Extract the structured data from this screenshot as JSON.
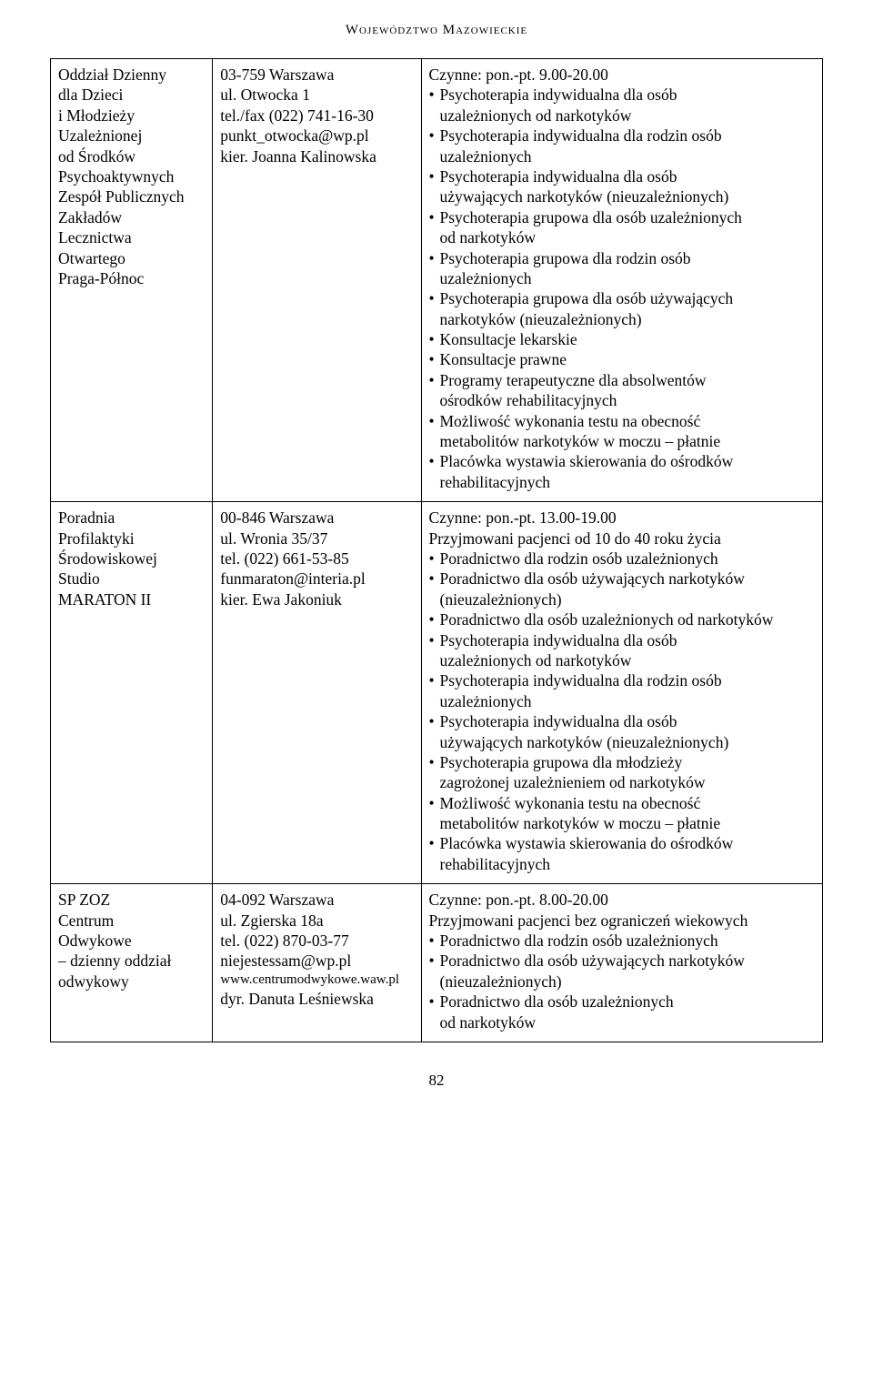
{
  "header": "Województwo Mazowieckie",
  "page_number": "82",
  "rows": [
    {
      "col1_lines": [
        "Oddział Dzienny",
        "dla Dzieci",
        "i Młodzieży",
        "Uzależnionej",
        "od Środków",
        "Psychoaktywnych",
        "Zespół Publicznych",
        "Zakładów",
        "Lecznictwa",
        "Otwartego",
        "Praga-Północ"
      ],
      "col2_lines": [
        "03-759 Warszawa",
        "ul. Otwocka 1",
        "tel./fax (022) 741-16-30",
        "punkt_otwocka@wp.pl",
        "kier. Joanna Kalinowska"
      ],
      "col3_intro": "Czynne: pon.-pt. 9.00-20.00",
      "col3_extra": [],
      "col3_items": [
        [
          "Psychoterapia indywidualna dla osób",
          "uzależnionych od narkotyków"
        ],
        [
          "Psychoterapia indywidualna dla rodzin osób",
          "uzależnionych"
        ],
        [
          "Psychoterapia indywidualna dla osób",
          "używających narkotyków (nieuzależnionych)"
        ],
        [
          "Psychoterapia grupowa dla osób uzależnionych",
          "od narkotyków"
        ],
        [
          "Psychoterapia grupowa dla rodzin osób",
          "uzależnionych"
        ],
        [
          "Psychoterapia grupowa dla osób używających",
          "narkotyków (nieuzależnionych)"
        ],
        [
          "Konsultacje lekarskie"
        ],
        [
          "Konsultacje prawne"
        ],
        [
          "Programy terapeutyczne dla absolwentów",
          "ośrodków rehabilitacyjnych"
        ],
        [
          "Możliwość wykonania testu na obecność",
          "metabolitów narkotyków w moczu – płatnie"
        ],
        [
          "Placówka wystawia skierowania do ośrodków",
          "rehabilitacyjnych"
        ]
      ]
    },
    {
      "col1_lines": [
        "Poradnia",
        "Profilaktyki",
        "Środowiskowej",
        "Studio",
        "MARATON II"
      ],
      "col2_lines": [
        "00-846 Warszawa",
        "ul. Wronia 35/37",
        "tel. (022) 661-53-85",
        "funmaraton@interia.pl",
        "kier. Ewa Jakoniuk"
      ],
      "col3_intro": "Czynne: pon.-pt. 13.00-19.00",
      "col3_extra": [
        "Przyjmowani pacjenci od 10 do 40 roku życia"
      ],
      "col3_items": [
        [
          "Poradnictwo dla rodzin osób uzależnionych"
        ],
        [
          "Poradnictwo dla osób używających narkotyków",
          "(nieuzależnionych)"
        ],
        [
          "Poradnictwo dla osób uzależnionych od narkotyków"
        ],
        [
          "Psychoterapia indywidualna dla osób",
          "uzależnionych od narkotyków"
        ],
        [
          "Psychoterapia indywidualna dla rodzin osób",
          "uzależnionych"
        ],
        [
          "Psychoterapia indywidualna dla osób",
          "używających narkotyków (nieuzależnionych)"
        ],
        [
          "Psychoterapia grupowa dla młodzieży",
          "zagrożonej uzależnieniem od narkotyków"
        ],
        [
          "Możliwość wykonania testu na obecność",
          "metabolitów narkotyków w moczu – płatnie"
        ],
        [
          "Placówka wystawia skierowania do ośrodków",
          "rehabilitacyjnych"
        ]
      ]
    },
    {
      "col1_lines": [
        "SP ZOZ",
        "Centrum",
        "Odwykowe",
        "– dzienny oddział",
        "odwykowy"
      ],
      "col2_lines": [
        "04-092 Warszawa",
        "ul. Zgierska 18a",
        "tel. (022) 870-03-77",
        "niejestessam@wp.pl",
        "www.centrumodwykowe.waw.pl",
        "dyr. Danuta Leśniewska"
      ],
      "col3_intro": "Czynne: pon.-pt. 8.00-20.00",
      "col3_extra": [
        "Przyjmowani pacjenci bez ograniczeń wiekowych"
      ],
      "col3_items": [
        [
          "Poradnictwo dla rodzin osób uzależnionych"
        ],
        [
          "Poradnictwo dla osób używających narkotyków",
          "(nieuzależnionych)"
        ],
        [
          "Poradnictwo dla osób uzależnionych",
          "od narkotyków"
        ]
      ]
    }
  ]
}
